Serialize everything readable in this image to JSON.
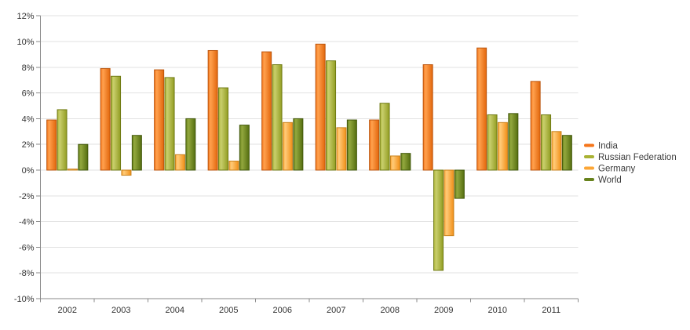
{
  "chart_data": {
    "type": "bar",
    "title": "",
    "categories": [
      "2002",
      "2003",
      "2004",
      "2005",
      "2006",
      "2007",
      "2008",
      "2009",
      "2010",
      "2011"
    ],
    "series": [
      {
        "name": "India",
        "values": [
          3.9,
          7.9,
          7.8,
          9.3,
          9.2,
          9.8,
          3.9,
          8.2,
          9.5,
          6.9
        ],
        "fill": "#F5761B",
        "highlight": "#FFA14E",
        "dark": "#E2660C",
        "border": "#BB560E"
      },
      {
        "name": "Russian Federation",
        "values": [
          4.7,
          7.3,
          7.2,
          6.4,
          8.2,
          8.5,
          5.2,
          -7.8,
          4.3,
          4.3
        ],
        "fill": "#A9B233",
        "highlight": "#C9CF6D",
        "dark": "#929D22",
        "border": "#6F7A14"
      },
      {
        "name": "Germany",
        "values": [
          0.0,
          -0.4,
          1.2,
          0.7,
          3.7,
          3.3,
          1.1,
          -5.1,
          3.7,
          3.0
        ],
        "fill": "#FCA636",
        "highlight": "#FFCB79",
        "dark": "#F18F18",
        "border": "#C8821D"
      },
      {
        "name": "World",
        "values": [
          2.0,
          2.7,
          4.0,
          3.5,
          4.0,
          3.9,
          1.3,
          -2.2,
          4.4,
          2.7
        ],
        "fill": "#67821C",
        "highlight": "#93A83E",
        "dark": "#556E10",
        "border": "#42580B"
      }
    ],
    "y_axis": {
      "min": -10,
      "max": 12,
      "step": 2,
      "tick_suffix": "%",
      "tick_labels": [
        "12%",
        "10%",
        "8%",
        "6%",
        "4%",
        "2%",
        "0%",
        "-2%",
        "-4%",
        "-6%",
        "-8%",
        "-10%"
      ]
    },
    "x_axis": {
      "tick_labels": [
        "2002",
        "2003",
        "2004",
        "2005",
        "2006",
        "2007",
        "2008",
        "2009",
        "2010",
        "2011"
      ]
    },
    "legend_position": "right",
    "grid": true,
    "colors": {
      "background": "#FFFFFF",
      "grid": "#E2E2E2",
      "axis": "#8A8A8A",
      "tick": "#8A8A8A",
      "axis_label": "#333333",
      "legend_text": "#3C3C3C"
    }
  }
}
